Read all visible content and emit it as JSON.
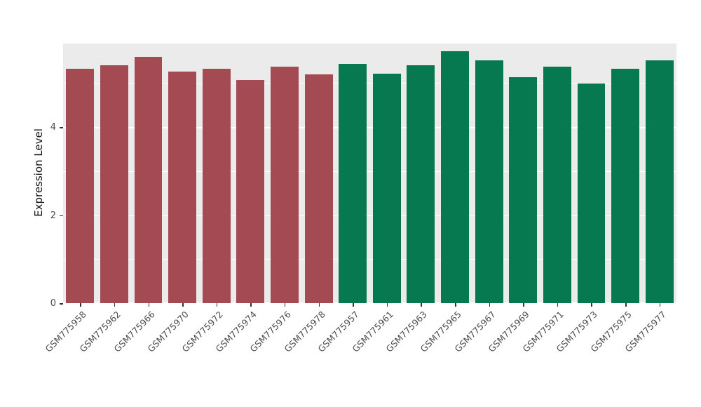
{
  "chart_data": {
    "type": "bar",
    "title": "",
    "xlabel": "",
    "ylabel": "Expression Level",
    "ylim": [
      0,
      5.9
    ],
    "yticks_major": [
      0,
      2,
      4
    ],
    "yticks_minor": [
      1,
      3,
      5
    ],
    "grid": true,
    "legend": "none",
    "panel_background": "#EBEBEB",
    "grid_color": "#FFFFFF",
    "series": [
      {
        "name": "group-1-maroon",
        "color": "#A34A52",
        "categories": [
          "GSM775958",
          "GSM775962",
          "GSM775966",
          "GSM775970",
          "GSM775972",
          "GSM775974",
          "GSM775976",
          "GSM775978"
        ],
        "values": [
          5.32,
          5.41,
          5.59,
          5.27,
          5.33,
          5.07,
          5.37,
          5.2
        ]
      },
      {
        "name": "group-2-green",
        "color": "#077950",
        "categories": [
          "GSM775957",
          "GSM775961",
          "GSM775963",
          "GSM775965",
          "GSM775967",
          "GSM775969",
          "GSM775971",
          "GSM775973",
          "GSM775975",
          "GSM775977"
        ],
        "values": [
          5.43,
          5.22,
          5.4,
          5.72,
          5.51,
          5.14,
          5.37,
          4.99,
          5.32,
          5.51
        ]
      }
    ]
  }
}
